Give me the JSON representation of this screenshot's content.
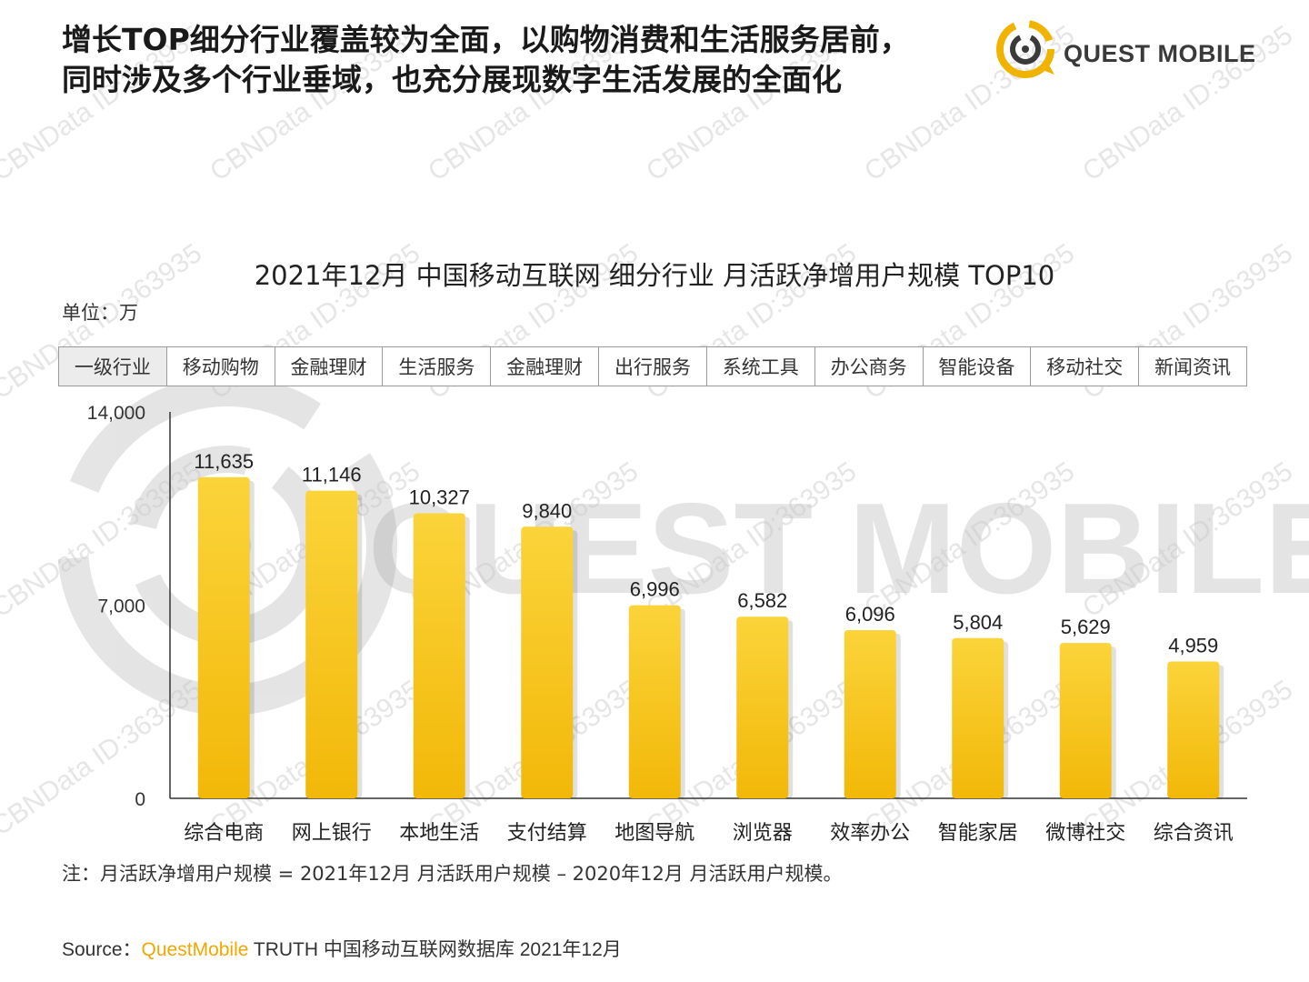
{
  "header": {
    "title_line1": "增长TOP细分行业覆盖较为全面，以购物消费和生活服务居前，",
    "title_line2": "同时涉及多个行业垂域，也充分展现数字生活发展的全面化"
  },
  "logo": {
    "text": "QUEST MOBILE",
    "icon": "questmobile-logo-icon"
  },
  "watermark": {
    "text": "CBNData ID:363935",
    "big_text": "QUEST MOBILE"
  },
  "unit_label": "单位：万",
  "category_row": {
    "header": "一级行业",
    "values": [
      "移动购物",
      "金融理财",
      "生活服务",
      "金融理财",
      "出行服务",
      "系统工具",
      "办公商务",
      "智能设备",
      "移动社交",
      "新闻资讯"
    ]
  },
  "chart_data": {
    "type": "bar",
    "title": "2021年12月 中国移动互联网 细分行业 月活跃净增用户规模 TOP10",
    "categories": [
      "综合电商",
      "网上银行",
      "本地生活",
      "支付结算",
      "地图导航",
      "浏览器",
      "效率办公",
      "智能家居",
      "微博社交",
      "综合资讯"
    ],
    "values": [
      11635,
      11146,
      10327,
      9840,
      6996,
      6582,
      6096,
      5804,
      5629,
      4959
    ],
    "value_labels": [
      "11,635",
      "11,146",
      "10,327",
      "9,840",
      "6,996",
      "6,582",
      "6,096",
      "5,804",
      "5,629",
      "4,959"
    ],
    "ylim": [
      0,
      14000
    ],
    "yticks": [
      0,
      7000,
      14000
    ],
    "ytick_labels": [
      "0",
      "7,000",
      "14,000"
    ],
    "xlabel": "",
    "ylabel": "",
    "grid": false,
    "bar_color": "#f9c21a",
    "bar_gradient_top": "#fbd43a",
    "bar_gradient_bottom": "#f2b808"
  },
  "footer": {
    "note": "注：月活跃净增用户规模 = 2021年12月 月活跃用户规模 – 2020年12月 月活跃用户规模。",
    "source_prefix": "Source：",
    "source_brand": "QuestMobile",
    "source_rest": " TRUTH 中国移动互联网数据库 2021年12月"
  },
  "colors": {
    "brand_yellow": "#f0a800",
    "text_dark": "#1a1a1a"
  }
}
